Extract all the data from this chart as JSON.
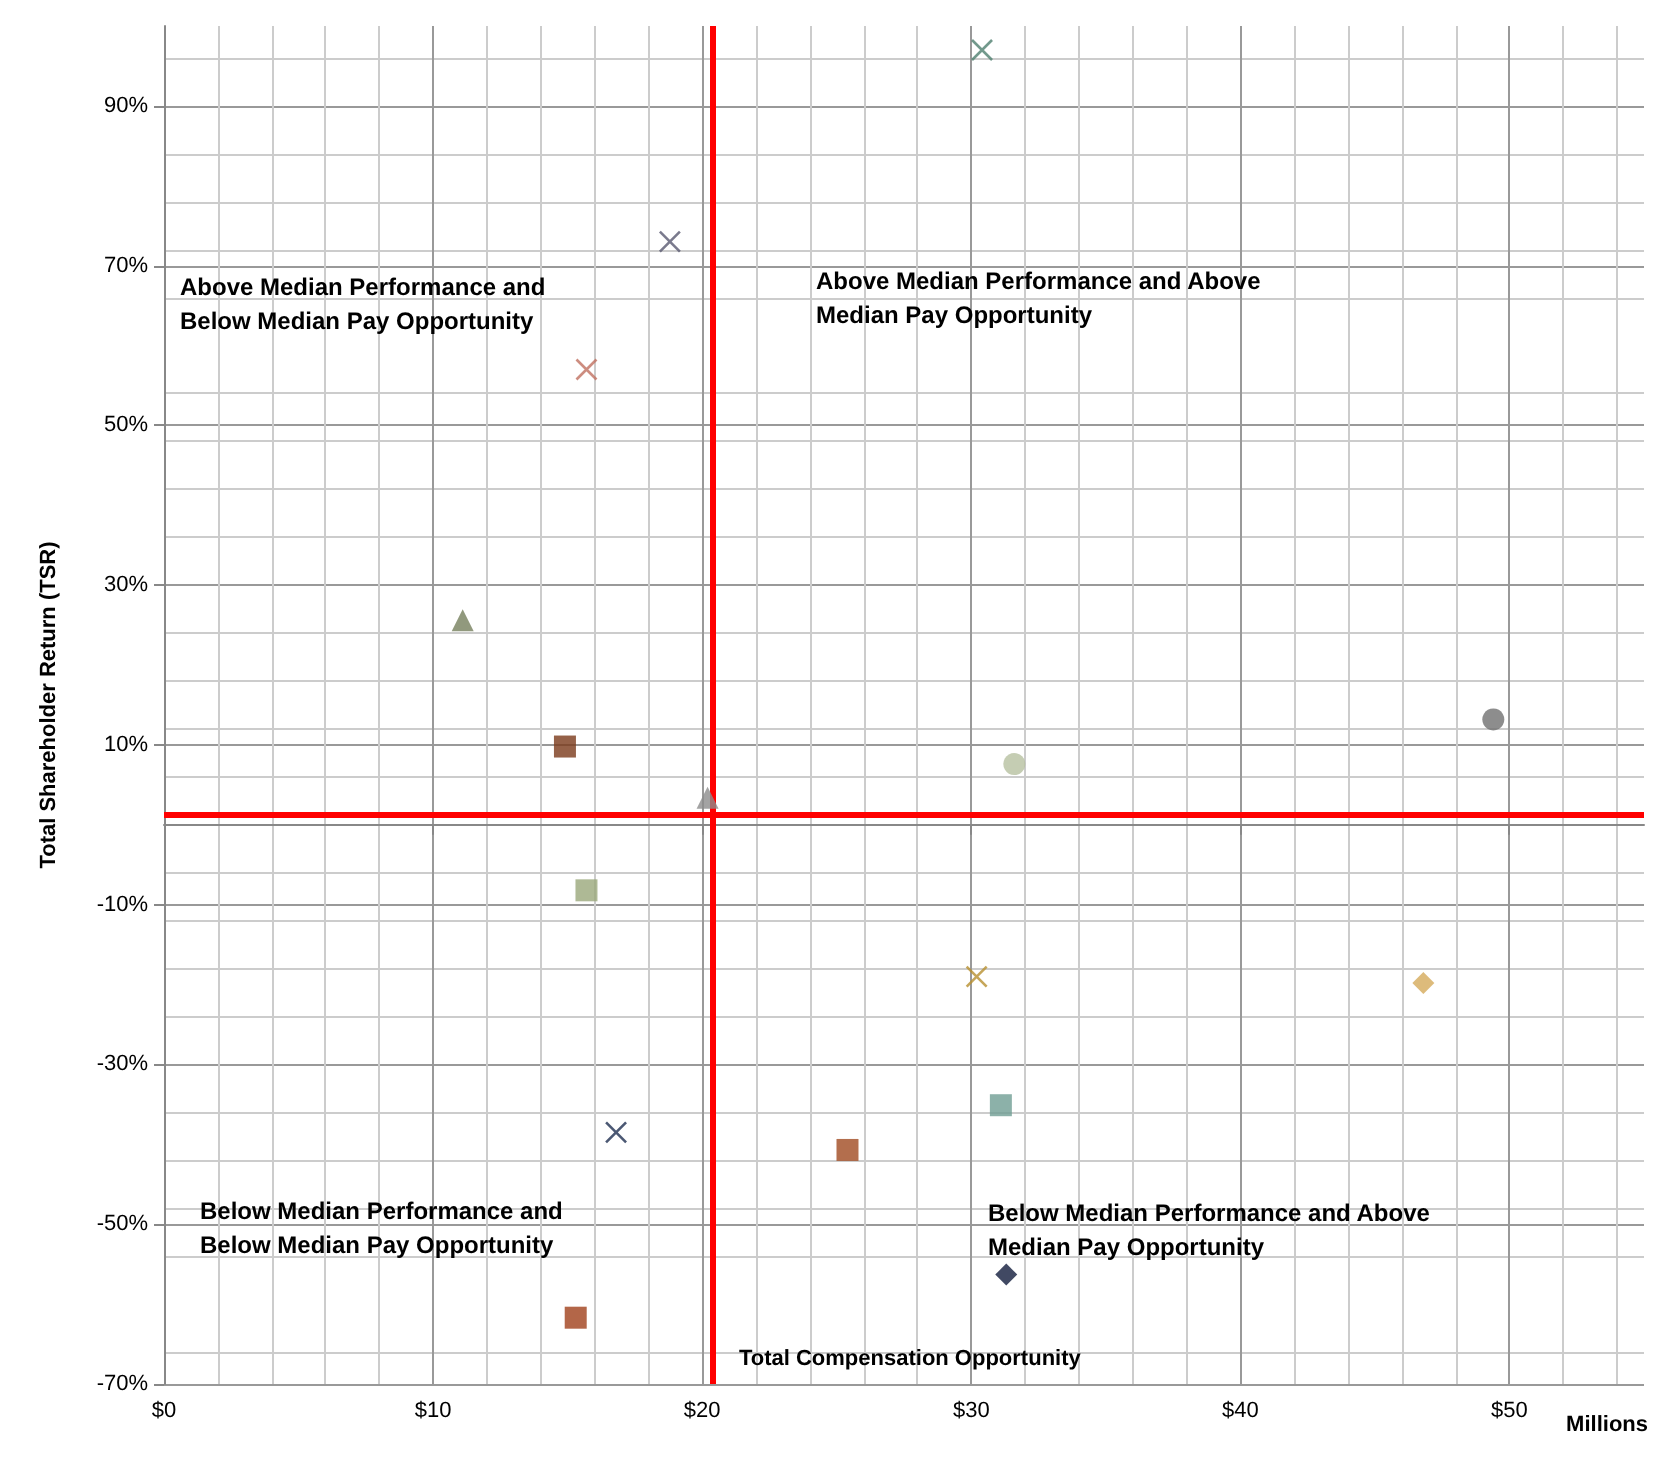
{
  "chart_data": {
    "type": "scatter",
    "xlabel": "Millions",
    "ylabel": "Total Shareholder Return (TSR)",
    "xlim": [
      0,
      55
    ],
    "xticks": [
      {
        "value": 0,
        "label": "$0"
      },
      {
        "value": 10,
        "label": "$10"
      },
      {
        "value": 20,
        "label": "$20"
      },
      {
        "value": 30,
        "label": "$30"
      },
      {
        "value": 40,
        "label": "$40"
      },
      {
        "value": 50,
        "label": "$50"
      }
    ],
    "ylim": [
      -70,
      100
    ],
    "yticks": [
      {
        "value": -70,
        "label": "-70%"
      },
      {
        "value": -50,
        "label": "-50%"
      },
      {
        "value": -30,
        "label": "-30%"
      },
      {
        "value": -10,
        "label": "-10%"
      },
      {
        "value": 10,
        "label": "10%"
      },
      {
        "value": 30,
        "label": "30%"
      },
      {
        "value": 50,
        "label": "50%"
      },
      {
        "value": 70,
        "label": "70%"
      },
      {
        "value": 90,
        "label": "90%"
      }
    ],
    "grid": true,
    "series": [
      {
        "color": "#4f7f6f",
        "marker": "cross",
        "x": [
          30.4
        ],
        "values": [
          97
        ]
      },
      {
        "color": "#595970",
        "marker": "cross",
        "x": [
          18.8
        ],
        "values": [
          73
        ]
      },
      {
        "color": "#c07060",
        "marker": "cross",
        "x": [
          15.7
        ],
        "values": [
          57
        ]
      },
      {
        "color": "#76805c",
        "marker": "triangle",
        "x": [
          11.1
        ],
        "values": [
          25.6
        ]
      },
      {
        "color": "#7b3a1a",
        "marker": "square",
        "x": [
          14.9
        ],
        "values": [
          9.8
        ]
      },
      {
        "color": "#8c8c8c",
        "marker": "triangle",
        "x": [
          20.2
        ],
        "values": [
          3.4
        ]
      },
      {
        "color": "#9aa87a",
        "marker": "square",
        "x": [
          15.7
        ],
        "values": [
          -8.2
        ]
      },
      {
        "color": "#707070",
        "marker": "circle",
        "x": [
          49.4
        ],
        "values": [
          13.2
        ]
      },
      {
        "color": "#b7c0a0",
        "marker": "circle",
        "x": [
          31.6
        ],
        "values": [
          7.6
        ]
      },
      {
        "color": "#b8902f",
        "marker": "cross",
        "x": [
          30.2
        ],
        "values": [
          -19
        ]
      },
      {
        "color": "#d4aa5a",
        "marker": "diamond",
        "x": [
          46.8
        ],
        "values": [
          -19.8
        ]
      },
      {
        "color": "#6f9e94",
        "marker": "square",
        "x": [
          31.1
        ],
        "values": [
          -35.1
        ]
      },
      {
        "color": "#a04a20",
        "marker": "square",
        "x": [
          25.4
        ],
        "values": [
          -40.7
        ]
      },
      {
        "color": "#1e2e50",
        "marker": "cross",
        "x": [
          16.8
        ],
        "values": [
          -38.5
        ]
      },
      {
        "color": "#121c3c",
        "marker": "diamond",
        "x": [
          31.3
        ],
        "values": [
          -56.3
        ]
      },
      {
        "color": "#a0401a",
        "marker": "square",
        "x": [
          15.3
        ],
        "values": [
          -61.7
        ]
      }
    ],
    "ref_lines": [
      {
        "axis": "x",
        "value": 20.4,
        "label": "Total Compensation Opportunity",
        "color": "#ff0000"
      },
      {
        "axis": "y",
        "value": 1.2,
        "color": "#ff0000"
      }
    ],
    "annotations": [
      "Above Median Performance and Below Median Pay Opportunity",
      "Above Median Performance and Above Median Pay Opportunity",
      "Below Median Performance and Below Median Pay Opportunity",
      "Below Median Performance and Above Median Pay Opportunity"
    ]
  }
}
